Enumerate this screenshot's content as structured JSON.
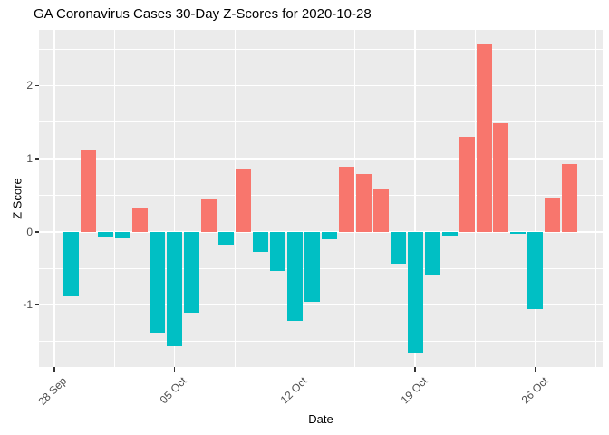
{
  "colors": {
    "positive_bar": "#F8766D",
    "negative_bar": "#00BFC4",
    "panel_background": "#EBEBEB",
    "gridline": "#FFFFFF",
    "axis_text": "#4D4D4D",
    "tick_mark": "#333333",
    "title_text": "#000000",
    "page_background": "#FFFFFF"
  },
  "chart_data": {
    "type": "bar",
    "title": "GA Coronavirus Cases 30-Day Z-Scores for 2020-10-28",
    "xlabel": "Date",
    "ylabel": "Z Score",
    "grid": true,
    "legend": "none",
    "ylim": [
      -1.85,
      2.76
    ],
    "y_major_ticks": [
      2,
      1,
      0,
      -1
    ],
    "y_minor_ticks": [
      2.5,
      1.5,
      0.5,
      -0.5,
      -1.5
    ],
    "x_ticks": [
      {
        "label": "28 Sep",
        "day": 0
      },
      {
        "label": "05 Oct",
        "day": 7
      },
      {
        "label": "12 Oct",
        "day": 14
      },
      {
        "label": "19 Oct",
        "day": 21
      },
      {
        "label": "26 Oct",
        "day": 28
      }
    ],
    "x_minor_tick_days": [
      3.5,
      10.5,
      17.5,
      24.5,
      31.5
    ],
    "points": [
      {
        "date": "2020-09-29",
        "day": 1,
        "z": -0.88
      },
      {
        "date": "2020-09-30",
        "day": 2,
        "z": 1.12
      },
      {
        "date": "2020-10-01",
        "day": 3,
        "z": -0.06
      },
      {
        "date": "2020-10-02",
        "day": 4,
        "z": -0.09
      },
      {
        "date": "2020-10-03",
        "day": 5,
        "z": 0.32
      },
      {
        "date": "2020-10-04",
        "day": 6,
        "z": -1.38
      },
      {
        "date": "2020-10-05",
        "day": 7,
        "z": -1.56
      },
      {
        "date": "2020-10-06",
        "day": 8,
        "z": -1.11
      },
      {
        "date": "2020-10-07",
        "day": 9,
        "z": 0.45
      },
      {
        "date": "2020-10-08",
        "day": 10,
        "z": -0.18
      },
      {
        "date": "2020-10-09",
        "day": 11,
        "z": 0.85
      },
      {
        "date": "2020-10-10",
        "day": 12,
        "z": -0.27
      },
      {
        "date": "2020-10-11",
        "day": 13,
        "z": -0.53
      },
      {
        "date": "2020-10-12",
        "day": 14,
        "z": -1.22
      },
      {
        "date": "2020-10-13",
        "day": 15,
        "z": -0.96
      },
      {
        "date": "2020-10-14",
        "day": 16,
        "z": -0.1
      },
      {
        "date": "2020-10-15",
        "day": 17,
        "z": 0.89
      },
      {
        "date": "2020-10-16",
        "day": 18,
        "z": 0.79
      },
      {
        "date": "2020-10-17",
        "day": 19,
        "z": 0.58
      },
      {
        "date": "2020-10-18",
        "day": 20,
        "z": -0.44
      },
      {
        "date": "2020-10-19",
        "day": 21,
        "z": -1.65
      },
      {
        "date": "2020-10-20",
        "day": 22,
        "z": -0.58
      },
      {
        "date": "2020-10-21",
        "day": 23,
        "z": -0.05
      },
      {
        "date": "2020-10-22",
        "day": 24,
        "z": 1.3
      },
      {
        "date": "2020-10-23",
        "day": 25,
        "z": 2.57
      },
      {
        "date": "2020-10-24",
        "day": 26,
        "z": 1.48
      },
      {
        "date": "2020-10-25",
        "day": 27,
        "z": -0.03
      },
      {
        "date": "2020-10-26",
        "day": 28,
        "z": -1.06
      },
      {
        "date": "2020-10-27",
        "day": 29,
        "z": 0.46
      },
      {
        "date": "2020-10-28",
        "day": 30,
        "z": 0.93
      }
    ]
  }
}
